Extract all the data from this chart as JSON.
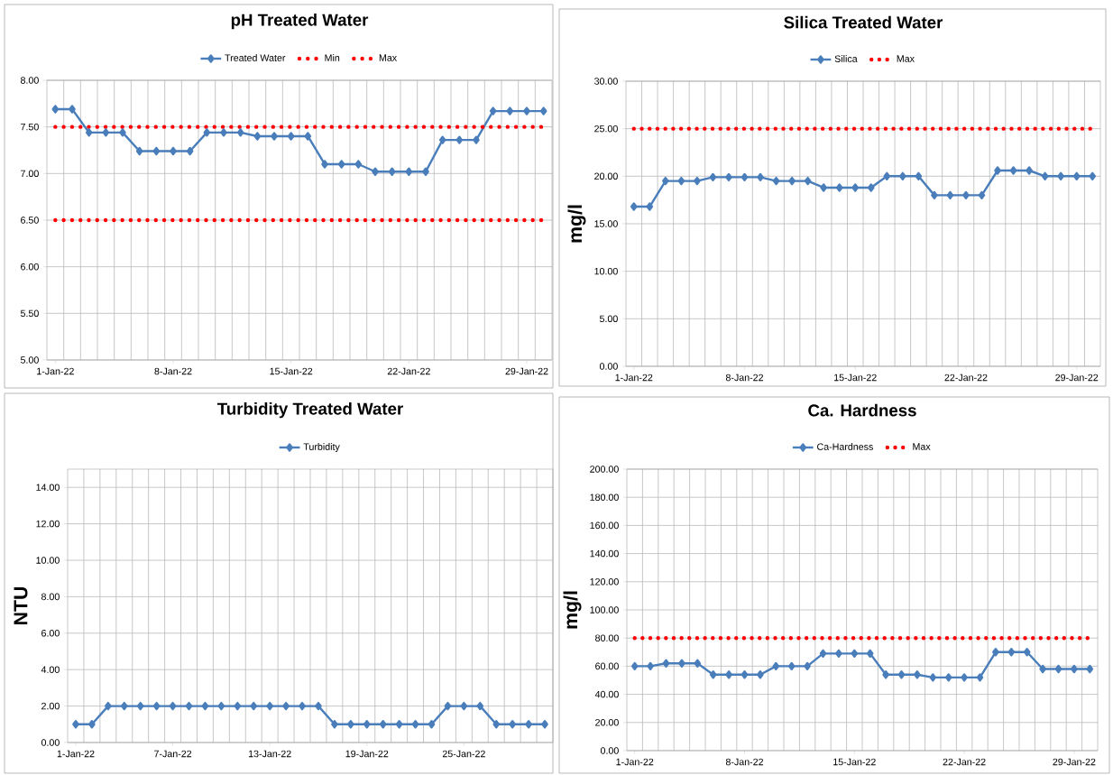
{
  "chart_data": [
    {
      "type": "line",
      "title": "pH Treated Water",
      "legend": "top",
      "grid": true,
      "categories": [
        "1-Jan-22",
        null,
        null,
        null,
        null,
        null,
        null,
        "8-Jan-22",
        null,
        null,
        null,
        null,
        null,
        null,
        "15-Jan-22",
        null,
        null,
        null,
        null,
        null,
        null,
        "22-Jan-22",
        null,
        null,
        null,
        null,
        null,
        null,
        "29-Jan-22",
        null
      ],
      "series": [
        {
          "name": "Treated Water",
          "color": "#4a7ebb",
          "marker": "diamond",
          "line_style": "solid",
          "values": [
            7.69,
            7.69,
            7.44,
            7.44,
            7.44,
            7.24,
            7.24,
            7.24,
            7.24,
            7.44,
            7.44,
            7.44,
            7.4,
            7.4,
            7.4,
            7.4,
            7.1,
            7.1,
            7.1,
            7.02,
            7.02,
            7.02,
            7.02,
            7.36,
            7.36,
            7.36,
            7.67,
            7.67,
            7.67,
            7.67
          ]
        },
        {
          "name": "Min",
          "color": "#ff0000",
          "marker": "none",
          "line_style": "dotted",
          "values": [
            6.5,
            6.5,
            6.5,
            6.5,
            6.5,
            6.5,
            6.5,
            6.5,
            6.5,
            6.5,
            6.5,
            6.5,
            6.5,
            6.5,
            6.5,
            6.5,
            6.5,
            6.5,
            6.5,
            6.5,
            6.5,
            6.5,
            6.5,
            6.5,
            6.5,
            6.5,
            6.5,
            6.5,
            6.5,
            6.5
          ]
        },
        {
          "name": "Max",
          "color": "#ff0000",
          "marker": "none",
          "line_style": "dotted",
          "values": [
            7.5,
            7.5,
            7.5,
            7.5,
            7.5,
            7.5,
            7.5,
            7.5,
            7.5,
            7.5,
            7.5,
            7.5,
            7.5,
            7.5,
            7.5,
            7.5,
            7.5,
            7.5,
            7.5,
            7.5,
            7.5,
            7.5,
            7.5,
            7.5,
            7.5,
            7.5,
            7.5,
            7.5,
            7.5,
            7.5
          ]
        }
      ],
      "ylim": [
        5,
        8
      ],
      "yticks": [
        {
          "value": 5,
          "label": "5.00"
        },
        {
          "value": 5.5,
          "label": "5.50"
        },
        {
          "value": 6,
          "label": "6.00"
        },
        {
          "value": 6.5,
          "label": "6.50"
        },
        {
          "value": 7,
          "label": "7.00"
        },
        {
          "value": 7.5,
          "label": "7.50"
        },
        {
          "value": 8,
          "label": "8.00"
        }
      ]
    },
    {
      "type": "line",
      "title": "Silica Treated Water",
      "ylabel": "mg/l",
      "legend": "top",
      "grid": true,
      "categories": [
        "1-Jan-22",
        null,
        null,
        null,
        null,
        null,
        null,
        "8-Jan-22",
        null,
        null,
        null,
        null,
        null,
        null,
        "15-Jan-22",
        null,
        null,
        null,
        null,
        null,
        null,
        "22-Jan-22",
        null,
        null,
        null,
        null,
        null,
        null,
        "29-Jan-22",
        null
      ],
      "series": [
        {
          "name": "Silica",
          "color": "#4a7ebb",
          "marker": "diamond",
          "line_style": "solid",
          "values": [
            16.8,
            16.8,
            19.5,
            19.5,
            19.5,
            19.9,
            19.9,
            19.9,
            19.9,
            19.5,
            19.5,
            19.5,
            18.8,
            18.8,
            18.8,
            18.8,
            20.0,
            20.0,
            20.0,
            18.0,
            18.0,
            18.0,
            18.0,
            20.6,
            20.6,
            20.6,
            20.0,
            20.0,
            20.0,
            20.0
          ]
        },
        {
          "name": "Max",
          "color": "#ff0000",
          "marker": "none",
          "line_style": "dotted",
          "values": [
            25,
            25,
            25,
            25,
            25,
            25,
            25,
            25,
            25,
            25,
            25,
            25,
            25,
            25,
            25,
            25,
            25,
            25,
            25,
            25,
            25,
            25,
            25,
            25,
            25,
            25,
            25,
            25,
            25,
            25
          ]
        }
      ],
      "ylim": [
        0,
        30
      ],
      "yticks": [
        {
          "value": 0,
          "label": "0.00"
        },
        {
          "value": 5,
          "label": "5.00"
        },
        {
          "value": 10,
          "label": "10.00"
        },
        {
          "value": 15,
          "label": "15.00"
        },
        {
          "value": 20,
          "label": "20.00"
        },
        {
          "value": 25,
          "label": "25.00"
        },
        {
          "value": 30,
          "label": "30.00"
        }
      ]
    },
    {
      "type": "line",
      "title": "Turbidity Treated Water",
      "ylabel": "NTU",
      "legend": "top",
      "grid": true,
      "categories": [
        "1-Jan-22",
        null,
        null,
        null,
        null,
        null,
        "7-Jan-22",
        null,
        null,
        null,
        null,
        null,
        "13-Jan-22",
        null,
        null,
        null,
        null,
        null,
        "19-Jan-22",
        null,
        null,
        null,
        null,
        null,
        "25-Jan-22",
        null,
        null,
        null,
        null,
        null
      ],
      "series": [
        {
          "name": "Turbidity",
          "color": "#4a7ebb",
          "marker": "diamond",
          "line_style": "solid",
          "values": [
            1,
            1,
            2,
            2,
            2,
            2,
            2,
            2,
            2,
            2,
            2,
            2,
            2,
            2,
            2,
            2,
            1,
            1,
            1,
            1,
            1,
            1,
            1,
            2,
            2,
            2,
            1,
            1,
            1,
            1
          ]
        }
      ],
      "ylim": [
        0,
        15
      ],
      "yticks": [
        {
          "value": 0,
          "label": "0.00"
        },
        {
          "value": 2,
          "label": "2.00"
        },
        {
          "value": 4,
          "label": "4.00"
        },
        {
          "value": 6,
          "label": "6.00"
        },
        {
          "value": 8,
          "label": "8.00"
        },
        {
          "value": 10,
          "label": "10.00"
        },
        {
          "value": 12,
          "label": "12.00"
        },
        {
          "value": 14,
          "label": "14.00"
        }
      ]
    },
    {
      "type": "line",
      "title": "Ca. Hardness",
      "ylabel": "mg/l",
      "legend": "top",
      "grid": true,
      "categories": [
        "1-Jan-22",
        null,
        null,
        null,
        null,
        null,
        null,
        "8-Jan-22",
        null,
        null,
        null,
        null,
        null,
        null,
        "15-Jan-22",
        null,
        null,
        null,
        null,
        null,
        null,
        "22-Jan-22",
        null,
        null,
        null,
        null,
        null,
        null,
        "29-Jan-22",
        null
      ],
      "series": [
        {
          "name": "Ca-Hardness",
          "color": "#4a7ebb",
          "marker": "diamond",
          "line_style": "solid",
          "values": [
            60,
            60,
            62,
            62,
            62,
            54,
            54,
            54,
            54,
            60,
            60,
            60,
            69,
            69,
            69,
            69,
            54,
            54,
            54,
            52,
            52,
            52,
            52,
            70,
            70,
            70,
            58,
            58,
            58,
            58
          ]
        },
        {
          "name": "Max",
          "color": "#ff0000",
          "marker": "none",
          "line_style": "dotted",
          "values": [
            80,
            80,
            80,
            80,
            80,
            80,
            80,
            80,
            80,
            80,
            80,
            80,
            80,
            80,
            80,
            80,
            80,
            80,
            80,
            80,
            80,
            80,
            80,
            80,
            80,
            80,
            80,
            80,
            80,
            80
          ]
        }
      ],
      "ylim": [
        0,
        200
      ],
      "yticks": [
        {
          "value": 0,
          "label": "0.00"
        },
        {
          "value": 20,
          "label": "20.00"
        },
        {
          "value": 40,
          "label": "40.00"
        },
        {
          "value": 60,
          "label": "60.00"
        },
        {
          "value": 80,
          "label": "80.00"
        },
        {
          "value": 100,
          "label": "100.00"
        },
        {
          "value": 120,
          "label": "120.00"
        },
        {
          "value": 140,
          "label": "140.00"
        },
        {
          "value": 160,
          "label": "160.00"
        },
        {
          "value": 180,
          "label": "180.00"
        },
        {
          "value": 200,
          "label": "200.00"
        }
      ]
    }
  ]
}
